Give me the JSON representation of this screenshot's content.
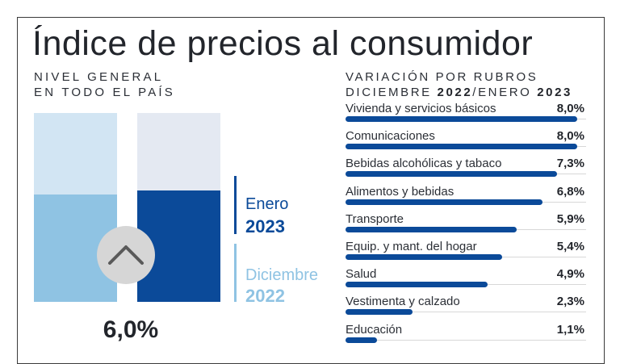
{
  "title": "Índice de precios al consumidor",
  "left_subtitle": {
    "line1": "NIVEL GENERAL",
    "line2": "EN TODO EL PAÍS"
  },
  "right_subtitle": {
    "line1": "VARIACIÓN POR RUBROS",
    "line2_prefix": "DICIEMBRE ",
    "year_a": "2022",
    "separator": "/ENERO ",
    "year_b": "2023"
  },
  "legend": {
    "enero": {
      "month": "Enero",
      "year": "2023"
    },
    "diciembre": {
      "month": "Diciembre",
      "year": "2022"
    }
  },
  "big_value": "6,0%",
  "colors": {
    "dark_blue": "#0b4a99",
    "light_blue": "#8fc3e3",
    "pale_blue": "#d2e5f3",
    "pale_bg_right": "#e4e9f2"
  },
  "icon": "chevron-up-icon",
  "chart_data": [
    {
      "type": "bar",
      "series": [
        {
          "name": "Diciembre 2022",
          "value": 0.57
        },
        {
          "name": "Enero 2023",
          "value": 0.59
        }
      ]
    },
    {
      "type": "bar",
      "orientation": "horizontal",
      "categories": [
        "Vivienda y servicios básicos",
        "Comunicaciones",
        "Bebidas alcohólicas y tabaco",
        "Alimentos y bebidas",
        "Transporte",
        "Equip. y mant. del hogar",
        "Salud",
        "Vestimenta y calzado",
        "Educación"
      ],
      "values": [
        8.0,
        8.0,
        7.3,
        6.8,
        5.9,
        5.4,
        4.9,
        2.3,
        1.1
      ],
      "labels": [
        "8,0%",
        "8,0%",
        "7,3%",
        "6,8%",
        "5,9%",
        "5,4%",
        "4,9%",
        "2,3%",
        "1,1%"
      ],
      "xlim": [
        0,
        8.3
      ]
    }
  ]
}
